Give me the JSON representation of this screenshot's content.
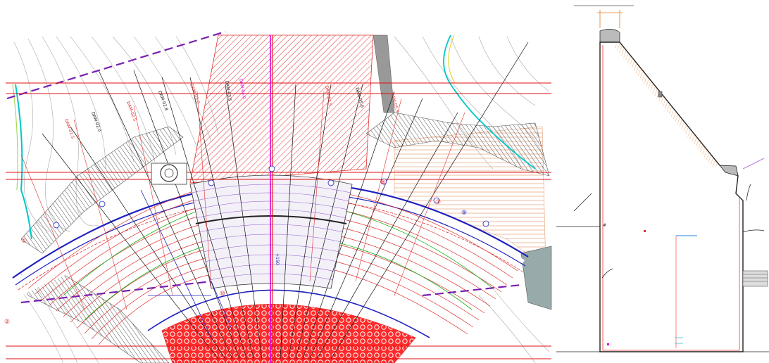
{
  "colors": {
    "grid": "#e01010",
    "contour": "#9a9a9a",
    "axis": "#e000e0",
    "blue": "#2020c0",
    "green": "#10a010",
    "purple": "#7a1fb0",
    "cyan": "#00c0c0",
    "rock": "#8a8a8a",
    "section": "#ff3030",
    "orange": "#e07a20"
  },
  "icons": {
    "hatch": "diagonal-hatch-pattern",
    "rock": "rock-fill-pattern",
    "gravel": "circle-fill-pattern"
  },
  "plan": {
    "vertical_labels": [
      "DAM-01.5",
      "DAM-02.0",
      "DAM-02.5",
      "DAM-02.8",
      "DAM-03.0",
      "DAM-03.5",
      "DAM-04.0",
      "DAM-04.5",
      "DAM-05.0",
      "DAM-05.5"
    ],
    "small_labels": [
      "①",
      "②",
      "⑦",
      "⑧",
      "⑨",
      "⑩"
    ],
    "marker": "+150"
  },
  "section": {
    "marker": "#"
  }
}
